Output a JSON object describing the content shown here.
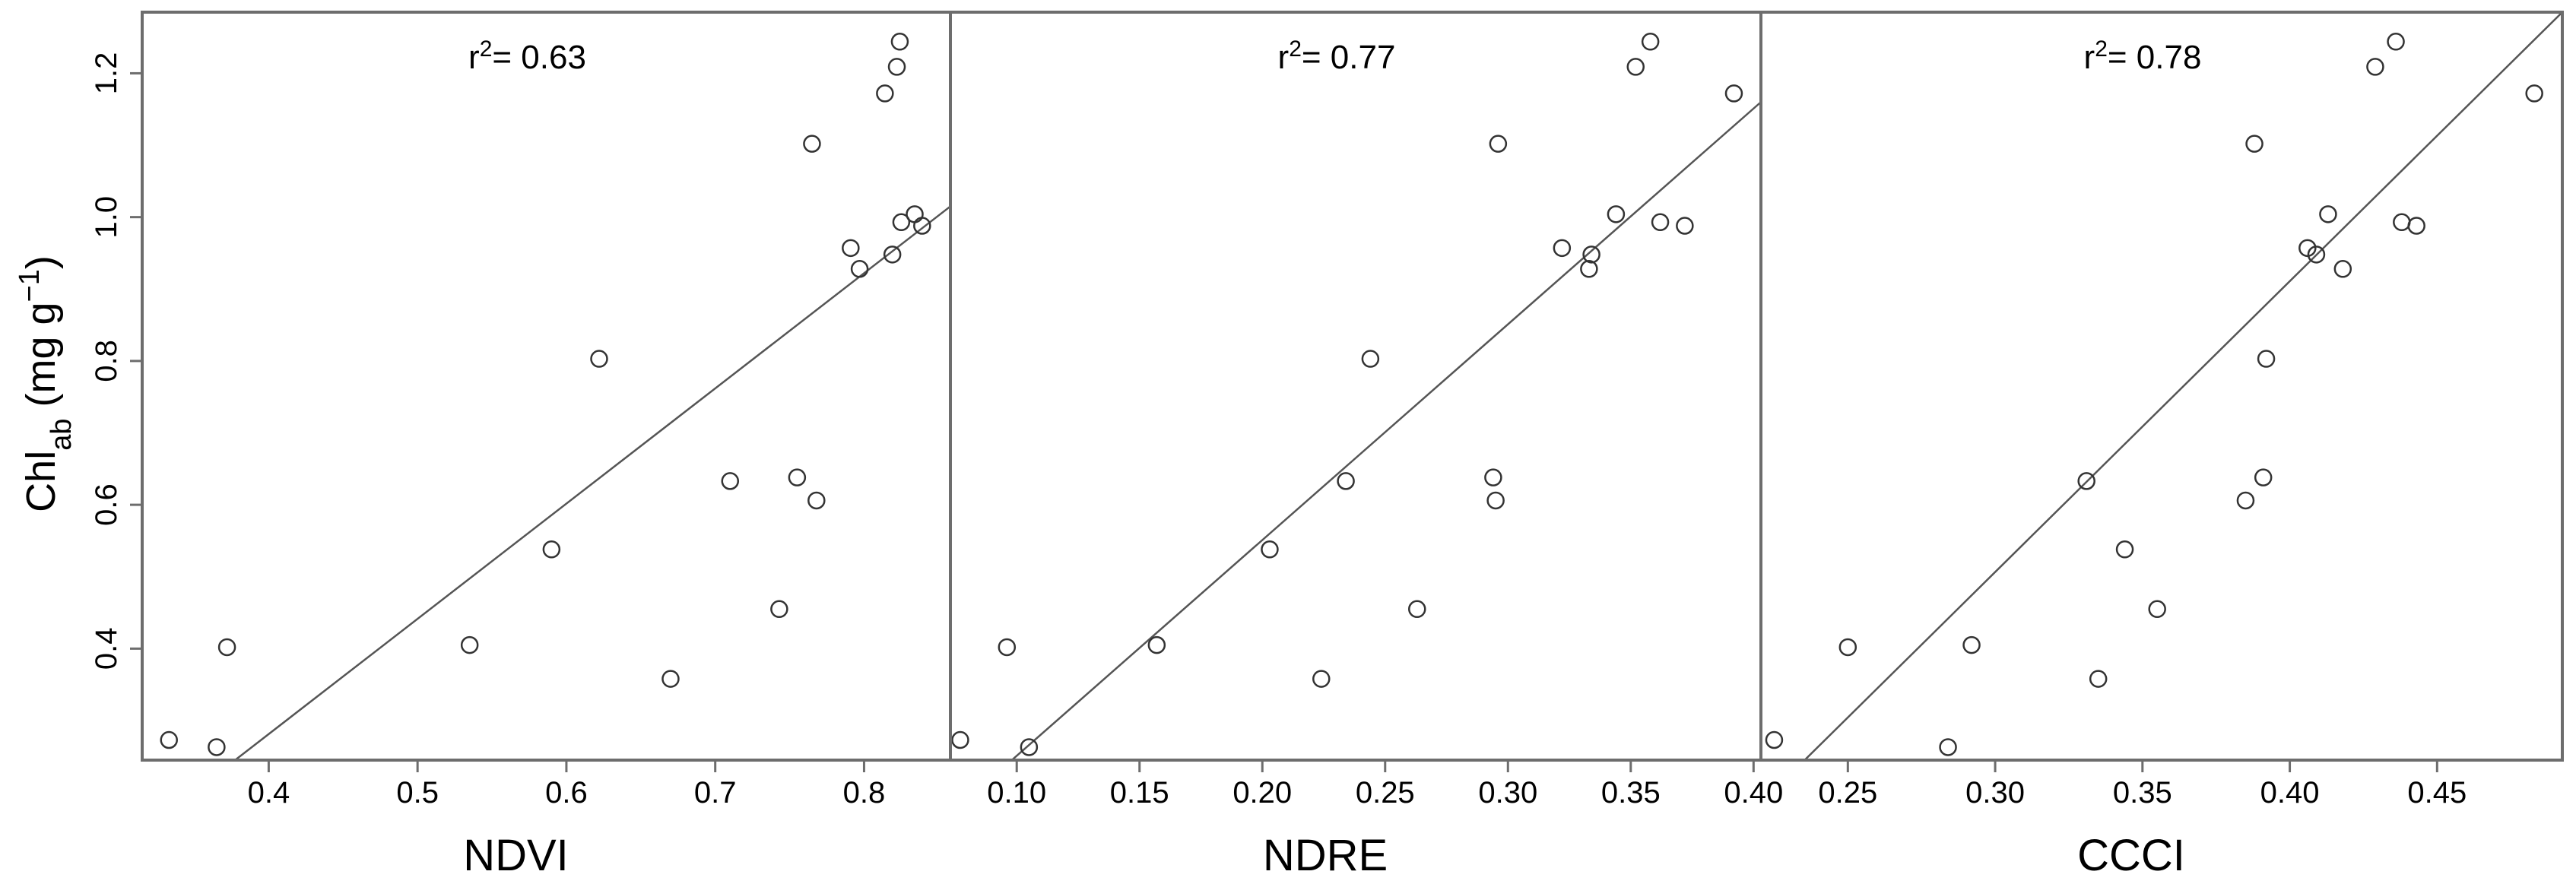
{
  "chart_data": [
    {
      "type": "scatter",
      "xlabel": "NDVI",
      "ylabel": {
        "base": "Chl",
        "sub": "ab",
        "unit_open": " (mg g",
        "unit_sup": "−1",
        "unit_close": ")"
      },
      "annotation": {
        "prefix": "r",
        "sup": "2",
        "text": "= 0.63"
      },
      "xlim": [
        0.315,
        0.858
      ],
      "ylim": [
        0.245,
        1.285
      ],
      "xticks": [
        0.4,
        0.5,
        0.6,
        0.7,
        0.8
      ],
      "xtick_labels": [
        "0.4",
        "0.5",
        "0.6",
        "0.7",
        "0.8"
      ],
      "yticks": [
        0.4,
        0.6,
        0.8,
        1.0,
        1.2
      ],
      "ytick_labels": [
        "0.4",
        "0.6",
        "0.8",
        "1.0",
        "1.2"
      ],
      "fit_line": {
        "x": [
          0.315,
          0.858
        ],
        "y": [
          0.145,
          1.015
        ]
      },
      "points": {
        "x": [
          0.333,
          0.365,
          0.372,
          0.535,
          0.59,
          0.622,
          0.67,
          0.71,
          0.743,
          0.755,
          0.765,
          0.768,
          0.791,
          0.797,
          0.814,
          0.819,
          0.822,
          0.824,
          0.825,
          0.834,
          0.839
        ],
        "y": [
          0.273,
          0.263,
          0.402,
          0.405,
          0.538,
          0.803,
          0.358,
          0.633,
          0.455,
          0.638,
          1.102,
          0.606,
          0.957,
          0.928,
          1.172,
          0.948,
          1.209,
          1.244,
          0.993,
          1.004,
          0.988
        ]
      }
    },
    {
      "type": "scatter",
      "xlabel": "NDRE",
      "annotation": {
        "prefix": "r",
        "sup": "2",
        "text": "= 0.77"
      },
      "xlim": [
        0.073,
        0.403
      ],
      "ylim": [
        0.245,
        1.285
      ],
      "xticks": [
        0.1,
        0.15,
        0.2,
        0.25,
        0.3,
        0.35,
        0.4
      ],
      "xtick_labels": [
        "0.10",
        "0.15",
        "0.20",
        "0.25",
        "0.30",
        "0.35",
        "0.40"
      ],
      "yticks": [
        0.4,
        0.6,
        0.8,
        1.0,
        1.2
      ],
      "fit_line": {
        "x": [
          0.073,
          0.403
        ],
        "y": [
          0.17,
          1.16
        ]
      },
      "points": {
        "x": [
          0.077,
          0.096,
          0.105,
          0.157,
          0.203,
          0.224,
          0.234,
          0.244,
          0.263,
          0.294,
          0.295,
          0.296,
          0.322,
          0.333,
          0.334,
          0.344,
          0.352,
          0.358,
          0.362,
          0.372,
          0.392
        ],
        "y": [
          0.273,
          0.402,
          0.263,
          0.405,
          0.538,
          0.358,
          0.633,
          0.803,
          0.455,
          0.638,
          0.606,
          1.102,
          0.957,
          0.928,
          0.948,
          1.004,
          1.209,
          1.244,
          0.993,
          0.988,
          1.172
        ]
      }
    },
    {
      "type": "scatter",
      "xlabel": "CCCI",
      "annotation": {
        "prefix": "r",
        "sup": "2",
        "text": "= 0.78"
      },
      "xlim": [
        0.2205,
        0.4925
      ],
      "ylim": [
        0.245,
        1.285
      ],
      "xticks": [
        0.25,
        0.3,
        0.35,
        0.4,
        0.45
      ],
      "xtick_labels": [
        "0.25",
        "0.30",
        "0.35",
        "0.40",
        "0.45"
      ],
      "yticks": [
        0.4,
        0.6,
        0.8,
        1.0,
        1.2
      ],
      "fit_line": {
        "x": [
          0.2205,
          0.4925
        ],
        "y": [
          0.185,
          1.285
        ]
      },
      "points": {
        "x": [
          0.225,
          0.25,
          0.284,
          0.292,
          0.331,
          0.335,
          0.344,
          0.355,
          0.385,
          0.388,
          0.391,
          0.392,
          0.406,
          0.409,
          0.413,
          0.418,
          0.429,
          0.436,
          0.438,
          0.443,
          0.483
        ],
        "y": [
          0.273,
          0.402,
          0.263,
          0.405,
          0.633,
          0.358,
          0.538,
          0.455,
          0.606,
          1.102,
          0.638,
          0.803,
          0.957,
          0.948,
          1.004,
          0.928,
          1.209,
          1.244,
          0.993,
          0.988,
          1.172
        ]
      }
    }
  ]
}
